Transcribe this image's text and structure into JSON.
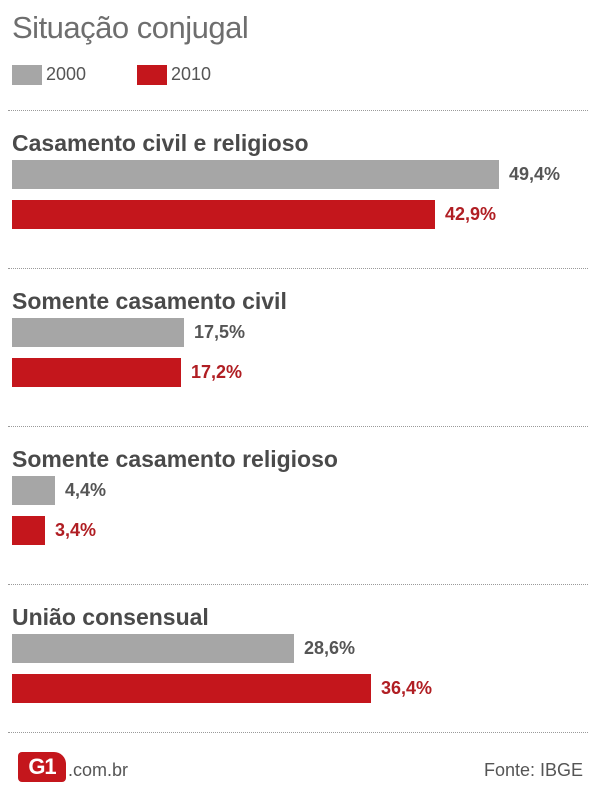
{
  "chart_data": {
    "type": "bar",
    "orientation": "horizontal",
    "title": "Situação conjugal",
    "categories": [
      "Casamento civil e religioso",
      "Somente casamento civil",
      "Somente casamento religioso",
      "União consensual"
    ],
    "series": [
      {
        "name": "2000",
        "values": [
          49.4,
          17.5,
          4.4,
          28.6
        ],
        "labels": [
          "49,4%",
          "17,5%",
          "4,4%",
          "28,6%"
        ],
        "color": "#a6a6a6",
        "label_color": "#555555"
      },
      {
        "name": "2010",
        "values": [
          42.9,
          17.2,
          3.4,
          36.4
        ],
        "labels": [
          "42,9%",
          "17,2%",
          "3,4%",
          "36,4%"
        ],
        "color": "#c4161c",
        "label_color": "#b01e23"
      }
    ],
    "legend_position": "top-left",
    "grid": false
  },
  "footer": {
    "logo_text": "G1",
    "logo_domain": ".com.br",
    "source": "Fonte: IBGE"
  }
}
